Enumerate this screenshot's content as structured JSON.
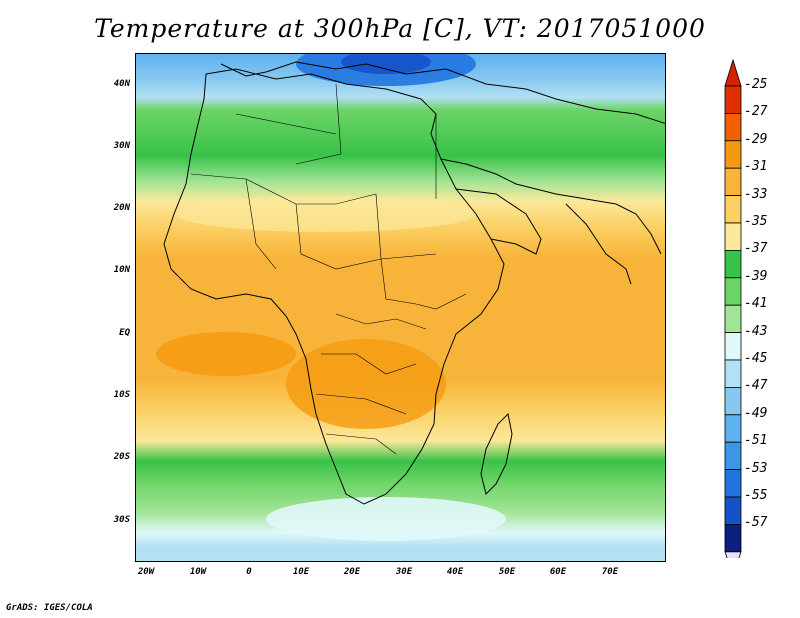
{
  "title": "Temperature at 300hPa [C], VT: 2017051000",
  "credit": "GrADS: IGES/COLA",
  "map": {
    "lat_labels": [
      "40N",
      "30N",
      "20N",
      "10N",
      "EQ",
      "10S",
      "20S",
      "30S"
    ],
    "lon_labels": [
      "20W",
      "10W",
      "0",
      "10E",
      "20E",
      "30E",
      "40E",
      "50E",
      "60E",
      "70E"
    ]
  },
  "colorbar": {
    "labels": [
      "-25",
      "-27",
      "-29",
      "-31",
      "-33",
      "-35",
      "-37",
      "-39",
      "-41",
      "-43",
      "-45",
      "-47",
      "-49",
      "-51",
      "-53",
      "-55",
      "-57"
    ],
    "colors": [
      "#e03000",
      "#f06000",
      "#f59a10",
      "#f8b43a",
      "#fbd064",
      "#fbe89a",
      "#38c248",
      "#6cd466",
      "#a2e496",
      "#e0f8f8",
      "#b2e0f4",
      "#88c8f0",
      "#5eb2ee",
      "#3c96e8",
      "#2274e0",
      "#1452c8",
      "#0c1e7e"
    ],
    "top_color": "#d42400",
    "bottom_color": "#e6e0f8"
  }
}
